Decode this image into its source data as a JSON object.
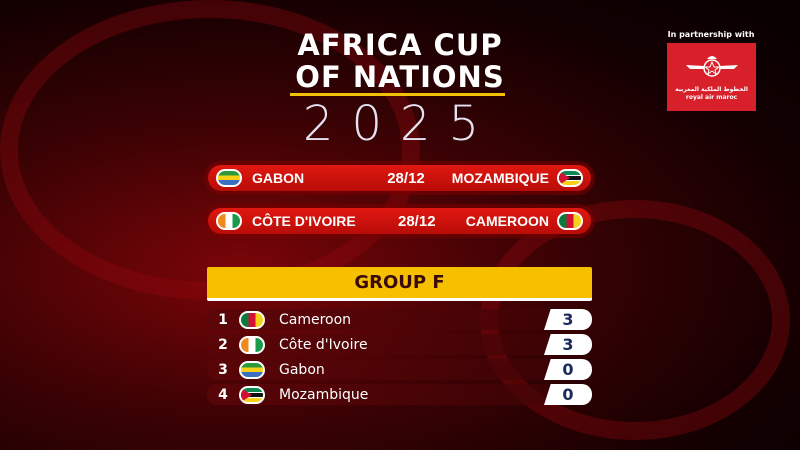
{
  "title": {
    "line1": "AFRICA CUP",
    "line2": "OF NATIONS",
    "year": "2025"
  },
  "partner": {
    "label": "In partnership with",
    "logo_text_arabic": "الخطوط الملكية المغربية",
    "logo_text": "royal air maroc"
  },
  "fixtures": [
    {
      "home": "GABON",
      "home_flag": "gabon-flag",
      "date": "28/12",
      "away": "MOZAMBIQUE",
      "away_flag": "mozambique-flag"
    },
    {
      "home": "CÔTE D'IVOIRE",
      "home_flag": "cote-divoire-flag",
      "date": "28/12",
      "away": "CAMEROON",
      "away_flag": "cameroon-flag"
    }
  ],
  "group": {
    "title": "GROUP F",
    "standings": [
      {
        "pos": "1",
        "team": "Cameroon",
        "flag": "cameroon-flag",
        "points": "3"
      },
      {
        "pos": "2",
        "team": "Côte d'Ivoire",
        "flag": "cote-divoire-flag",
        "points": "3"
      },
      {
        "pos": "3",
        "team": "Gabon",
        "flag": "gabon-flag",
        "points": "0"
      },
      {
        "pos": "4",
        "team": "Mozambique",
        "flag": "mozambique-flag",
        "points": "0"
      }
    ]
  },
  "colors": {
    "accent_gold": "#f6c000",
    "fixture_red": "#e01810",
    "logo_red": "#d8202a"
  }
}
